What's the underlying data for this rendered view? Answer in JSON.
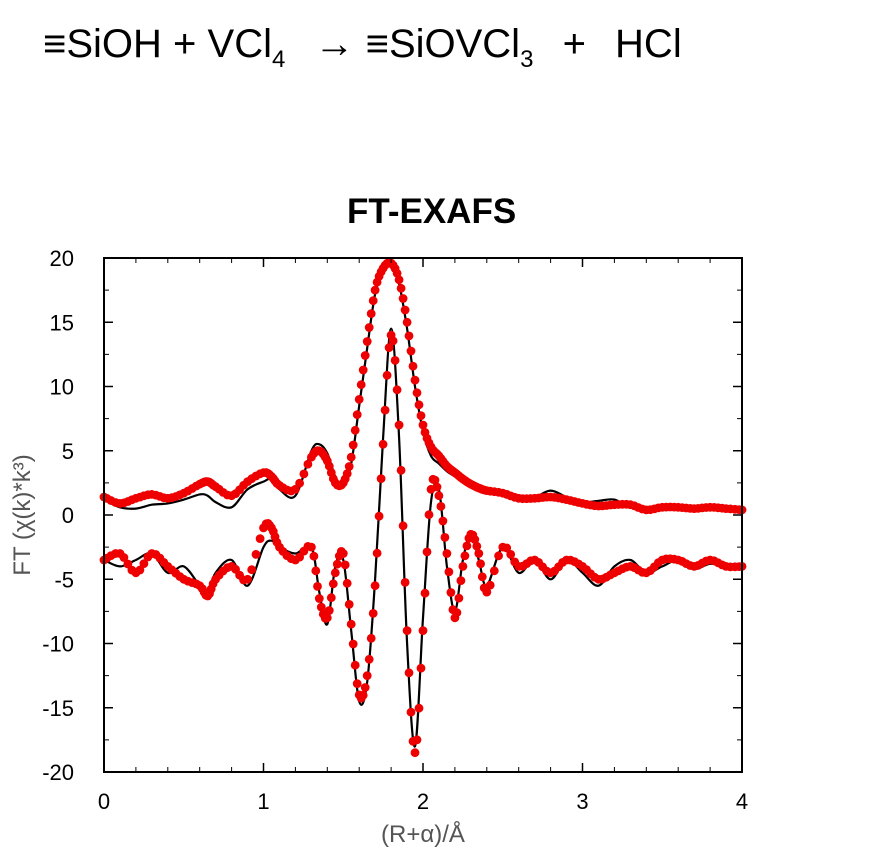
{
  "equation": {
    "reactant1_prefix": "≡",
    "reactant1": "SiOH",
    "plus1": "+",
    "reactant2": "VCl",
    "reactant2_sub": "4",
    "arrow": "→",
    "product1_prefix": "≡",
    "product1": "SiOVCl",
    "product1_sub": "3",
    "plus2": "+",
    "product2": "HCl"
  },
  "chart_data": {
    "type": "line",
    "title": "FT-EXAFS",
    "xlabel": "(R+α)/Å",
    "ylabel": "FT (χ(k)*k³)",
    "xlim": [
      0,
      4
    ],
    "ylim": [
      -20,
      20
    ],
    "xticks": [
      0,
      1,
      2,
      3,
      4
    ],
    "yticks": [
      20,
      15,
      10,
      5,
      0,
      -5,
      -10,
      -15,
      -20
    ],
    "x": [
      0.0,
      0.1,
      0.2,
      0.3,
      0.4,
      0.5,
      0.6,
      0.65,
      0.7,
      0.8,
      0.9,
      1.0,
      1.05,
      1.1,
      1.2,
      1.3,
      1.35,
      1.4,
      1.45,
      1.5,
      1.55,
      1.6,
      1.65,
      1.7,
      1.75,
      1.8,
      1.85,
      1.9,
      1.95,
      2.0,
      2.05,
      2.1,
      2.15,
      2.2,
      2.25,
      2.3,
      2.35,
      2.4,
      2.5,
      2.6,
      2.7,
      2.8,
      2.9,
      3.0,
      3.1,
      3.2,
      3.3,
      3.4,
      3.5,
      3.6,
      3.7,
      3.8,
      3.9,
      4.0
    ],
    "series": [
      {
        "group": "magnitude",
        "style": "fit-line",
        "color": "#000000",
        "values": [
          1.2,
          0.6,
          0.5,
          0.8,
          0.9,
          1.2,
          1.6,
          1.5,
          1.0,
          0.6,
          2.0,
          2.6,
          2.8,
          2.0,
          1.5,
          5.0,
          5.5,
          4.8,
          3.0,
          2.2,
          4.0,
          8.5,
          13.0,
          17.2,
          19.0,
          19.5,
          18.0,
          14.5,
          10.0,
          6.5,
          4.6,
          4.0,
          3.4,
          3.0,
          2.6,
          2.3,
          2.0,
          1.8,
          1.6,
          1.4,
          1.4,
          1.9,
          1.4,
          1.0,
          1.1,
          1.2,
          0.6,
          0.5,
          0.8,
          0.7,
          0.4,
          0.5,
          0.5,
          0.5
        ]
      },
      {
        "group": "magnitude",
        "style": "data-points",
        "color": "#ee0000",
        "values": [
          1.4,
          0.9,
          1.3,
          1.6,
          1.3,
          1.7,
          2.4,
          2.6,
          2.2,
          1.5,
          2.6,
          3.3,
          3.0,
          2.3,
          2.0,
          4.5,
          5.0,
          4.2,
          2.5,
          2.5,
          4.5,
          9.0,
          13.5,
          17.5,
          19.2,
          19.6,
          18.3,
          15.0,
          10.5,
          7.0,
          5.3,
          4.6,
          3.8,
          3.3,
          2.8,
          2.4,
          2.1,
          1.9,
          1.7,
          1.3,
          1.3,
          1.4,
          1.2,
          0.9,
          0.7,
          0.8,
          0.8,
          0.4,
          0.6,
          0.6,
          0.5,
          0.6,
          0.5,
          0.4
        ]
      },
      {
        "group": "imaginary",
        "style": "fit-line",
        "color": "#000000",
        "values": [
          -3.5,
          -4.0,
          -3.5,
          -3.0,
          -4.5,
          -4.0,
          -5.5,
          -6.0,
          -4.5,
          -3.5,
          -5.5,
          -2.5,
          -2.0,
          -2.5,
          -3.0,
          -2.5,
          -6.0,
          -8.5,
          -4.0,
          -3.5,
          -9.0,
          -14.5,
          -13.0,
          -5.0,
          6.0,
          14.5,
          6.0,
          -10.0,
          -18.0,
          -8.0,
          1.0,
          2.0,
          -4.0,
          -7.5,
          -3.5,
          -1.5,
          -3.5,
          -5.5,
          -2.5,
          -4.5,
          -3.5,
          -5.0,
          -3.5,
          -4.5,
          -5.5,
          -4.0,
          -3.5,
          -4.5,
          -4.0,
          -3.5,
          -4.2,
          -3.8,
          -4.0,
          -4.0
        ]
      },
      {
        "group": "imaginary",
        "style": "data-points",
        "color": "#ee0000",
        "values": [
          -3.5,
          -3.0,
          -4.5,
          -3.0,
          -4.0,
          -5.0,
          -5.5,
          -6.3,
          -5.0,
          -4.0,
          -5.0,
          -1.0,
          -1.0,
          -2.5,
          -3.5,
          -2.5,
          -6.5,
          -8.0,
          -4.5,
          -3.0,
          -8.5,
          -14.0,
          -12.5,
          -5.5,
          5.5,
          14.0,
          7.0,
          -9.0,
          -18.5,
          -9.0,
          2.0,
          1.5,
          -3.0,
          -8.0,
          -4.0,
          -1.5,
          -3.0,
          -6.0,
          -2.5,
          -4.0,
          -3.5,
          -4.5,
          -3.5,
          -4.0,
          -5.0,
          -4.5,
          -4.0,
          -4.5,
          -3.5,
          -3.5,
          -4.0,
          -3.5,
          -4.0,
          -4.0
        ]
      }
    ]
  }
}
